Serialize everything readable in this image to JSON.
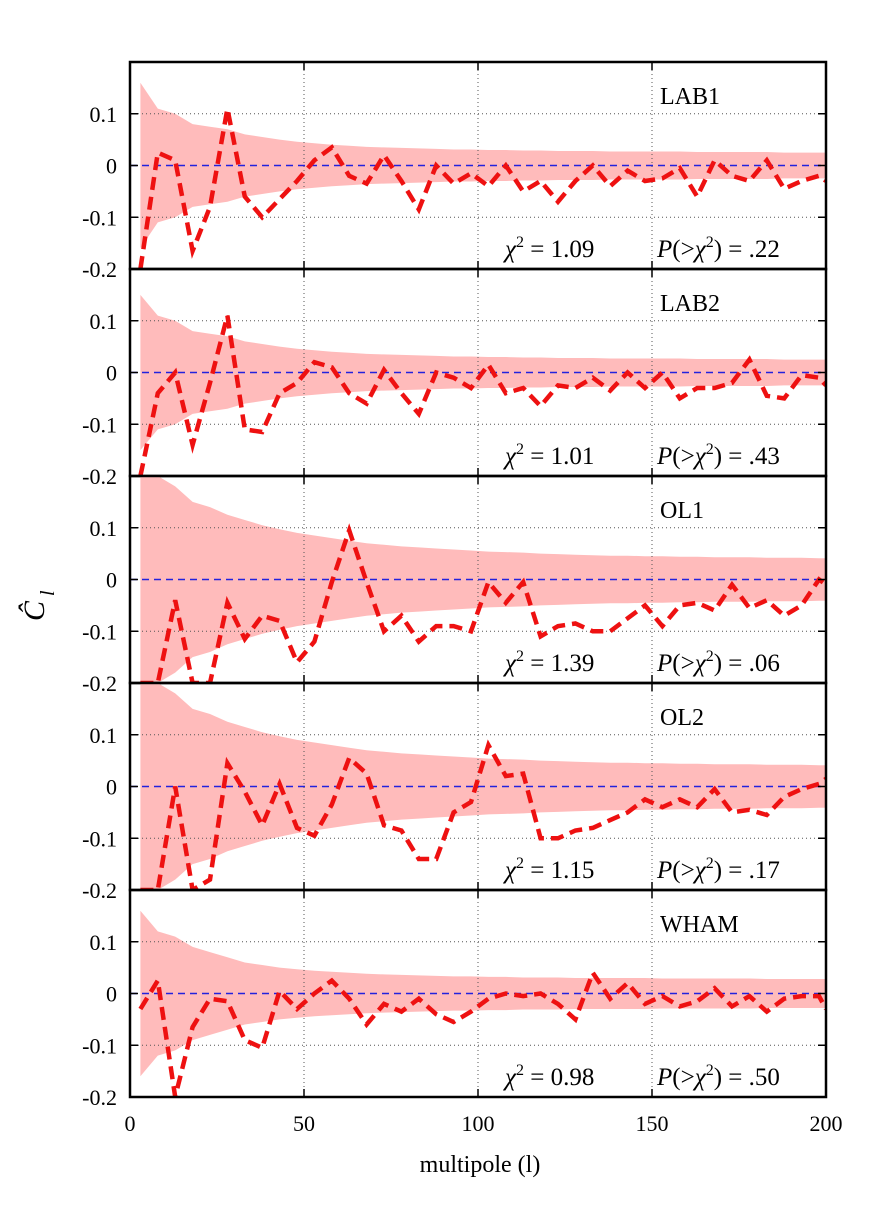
{
  "chart_data": {
    "type": "line",
    "xlabel": "multipole (l)",
    "ylabel": "Ĉ",
    "ylabel_sub": "l",
    "xlim": [
      0,
      200
    ],
    "ylim": [
      -0.2,
      0.2
    ],
    "xticks": [
      0,
      50,
      100,
      150,
      200
    ],
    "xtick_labels": [
      "0",
      "50",
      "100",
      "150",
      "200"
    ],
    "yticks": [
      -0.2,
      -0.1,
      0,
      0.1
    ],
    "ytick_labels": [
      "-0.2",
      "-0.1",
      "0",
      "0.1"
    ],
    "grid": true,
    "colors": {
      "line": "#ee1111",
      "band": "#ffbbbb",
      "zero": "#2222dd"
    },
    "x": [
      3,
      8,
      13,
      18,
      23,
      28,
      33,
      38,
      43,
      48,
      53,
      58,
      63,
      68,
      73,
      78,
      83,
      88,
      93,
      98,
      103,
      108,
      113,
      118,
      123,
      128,
      133,
      138,
      143,
      148,
      153,
      158,
      163,
      168,
      173,
      178,
      183,
      188,
      193,
      198,
      200
    ],
    "panels": [
      {
        "label": "LAB1",
        "chi2": "χ² = 1.09",
        "pval": "P(>χ²) = .22",
        "chi2_text": "1.09",
        "pval_text": ".22",
        "band": [
          0.16,
          0.11,
          0.1,
          0.08,
          0.075,
          0.07,
          0.06,
          0.055,
          0.05,
          0.046,
          0.043,
          0.04,
          0.038,
          0.036,
          0.035,
          0.034,
          0.033,
          0.032,
          0.031,
          0.031,
          0.03,
          0.03,
          0.029,
          0.029,
          0.028,
          0.028,
          0.028,
          0.027,
          0.027,
          0.027,
          0.027,
          0.027,
          0.026,
          0.026,
          0.026,
          0.026,
          0.026,
          0.025,
          0.025,
          0.025,
          0.025
        ],
        "values": [
          -0.2,
          0.025,
          0.01,
          -0.165,
          -0.08,
          0.11,
          -0.06,
          -0.1,
          -0.065,
          -0.03,
          0.01,
          0.035,
          -0.02,
          -0.035,
          0.02,
          -0.03,
          -0.085,
          0.0,
          -0.035,
          -0.015,
          -0.04,
          0.0,
          -0.05,
          -0.03,
          -0.07,
          -0.03,
          0.0,
          -0.04,
          -0.01,
          -0.03,
          -0.025,
          -0.005,
          -0.06,
          0.01,
          -0.02,
          -0.03,
          0.01,
          -0.045,
          -0.03,
          -0.02,
          -0.03
        ]
      },
      {
        "label": "LAB2",
        "chi2": "χ² = 1.01",
        "pval": "P(>χ²) = .43",
        "chi2_text": "1.01",
        "pval_text": ".43",
        "band": [
          0.15,
          0.11,
          0.1,
          0.08,
          0.075,
          0.07,
          0.06,
          0.055,
          0.05,
          0.046,
          0.043,
          0.04,
          0.038,
          0.036,
          0.035,
          0.034,
          0.033,
          0.032,
          0.031,
          0.031,
          0.03,
          0.03,
          0.029,
          0.029,
          0.028,
          0.028,
          0.028,
          0.027,
          0.027,
          0.027,
          0.027,
          0.027,
          0.026,
          0.026,
          0.026,
          0.026,
          0.026,
          0.025,
          0.025,
          0.025,
          0.025
        ],
        "values": [
          -0.2,
          -0.04,
          0.0,
          -0.14,
          -0.02,
          0.11,
          -0.11,
          -0.115,
          -0.04,
          -0.02,
          0.02,
          0.01,
          -0.04,
          -0.06,
          0.005,
          -0.04,
          -0.08,
          0.0,
          -0.01,
          -0.03,
          0.015,
          -0.04,
          -0.03,
          -0.065,
          -0.025,
          -0.03,
          -0.01,
          -0.035,
          0.0,
          -0.03,
          0.0,
          -0.05,
          -0.03,
          -0.03,
          -0.02,
          0.025,
          -0.045,
          -0.05,
          -0.005,
          -0.01,
          -0.025
        ]
      },
      {
        "label": "OL1",
        "chi2": "χ² = 1.39",
        "pval": "P(>χ²) = .06",
        "chi2_text": "1.39",
        "pval_text": ".06",
        "band": [
          0.22,
          0.2,
          0.18,
          0.15,
          0.14,
          0.125,
          0.115,
          0.105,
          0.097,
          0.09,
          0.085,
          0.08,
          0.075,
          0.07,
          0.067,
          0.064,
          0.062,
          0.06,
          0.058,
          0.056,
          0.054,
          0.053,
          0.052,
          0.05,
          0.049,
          0.048,
          0.047,
          0.046,
          0.046,
          0.045,
          0.045,
          0.044,
          0.044,
          0.043,
          0.043,
          0.043,
          0.042,
          0.042,
          0.042,
          0.041,
          0.041
        ],
        "values": [
          -0.2,
          -0.2,
          -0.04,
          -0.2,
          -0.2,
          -0.045,
          -0.115,
          -0.07,
          -0.08,
          -0.16,
          -0.12,
          -0.005,
          0.095,
          -0.005,
          -0.1,
          -0.07,
          -0.12,
          -0.09,
          -0.09,
          -0.1,
          -0.005,
          -0.045,
          -0.005,
          -0.11,
          -0.09,
          -0.085,
          -0.1,
          -0.1,
          -0.075,
          -0.05,
          -0.09,
          -0.05,
          -0.045,
          -0.06,
          -0.01,
          -0.055,
          -0.04,
          -0.07,
          -0.05,
          0.0,
          -0.01
        ]
      },
      {
        "label": "OL2",
        "chi2": "χ² = 1.15",
        "pval": "P(>χ²) = .17",
        "chi2_text": "1.15",
        "pval_text": ".17",
        "band": [
          0.22,
          0.2,
          0.18,
          0.15,
          0.14,
          0.125,
          0.115,
          0.105,
          0.097,
          0.09,
          0.085,
          0.08,
          0.075,
          0.07,
          0.067,
          0.064,
          0.062,
          0.06,
          0.058,
          0.056,
          0.054,
          0.053,
          0.052,
          0.05,
          0.049,
          0.048,
          0.047,
          0.046,
          0.046,
          0.045,
          0.045,
          0.044,
          0.044,
          0.043,
          0.043,
          0.043,
          0.042,
          0.042,
          0.042,
          0.041,
          0.041
        ],
        "values": [
          -0.2,
          -0.2,
          0.0,
          -0.2,
          -0.18,
          0.045,
          -0.01,
          -0.075,
          0.005,
          -0.08,
          -0.095,
          -0.035,
          0.055,
          0.025,
          -0.075,
          -0.085,
          -0.14,
          -0.14,
          -0.05,
          -0.03,
          0.08,
          0.02,
          0.025,
          -0.1,
          -0.1,
          -0.085,
          -0.08,
          -0.065,
          -0.05,
          -0.025,
          -0.04,
          -0.025,
          -0.04,
          -0.005,
          -0.05,
          -0.045,
          -0.055,
          -0.02,
          -0.005,
          0.005,
          0.015
        ]
      },
      {
        "label": "WHAM",
        "chi2": "χ² = 0.98",
        "pval": "P(>χ²) = .50",
        "chi2_text": "0.98",
        "pval_text": ".50",
        "band": [
          0.16,
          0.12,
          0.11,
          0.09,
          0.08,
          0.07,
          0.06,
          0.055,
          0.05,
          0.047,
          0.044,
          0.042,
          0.04,
          0.038,
          0.037,
          0.036,
          0.035,
          0.034,
          0.033,
          0.033,
          0.032,
          0.032,
          0.031,
          0.031,
          0.031,
          0.03,
          0.03,
          0.03,
          0.03,
          0.03,
          0.029,
          0.029,
          0.029,
          0.029,
          0.029,
          0.029,
          0.028,
          0.028,
          0.028,
          0.028,
          0.028
        ],
        "values": [
          -0.03,
          0.025,
          -0.2,
          -0.065,
          -0.01,
          -0.015,
          -0.09,
          -0.105,
          0.005,
          -0.03,
          0.0,
          0.025,
          -0.01,
          -0.06,
          -0.02,
          -0.035,
          -0.01,
          -0.04,
          -0.055,
          -0.035,
          -0.01,
          0.0,
          -0.005,
          0.0,
          -0.02,
          -0.05,
          0.04,
          -0.01,
          0.02,
          -0.02,
          -0.005,
          -0.025,
          -0.015,
          0.01,
          -0.025,
          -0.005,
          -0.035,
          -0.01,
          -0.005,
          -0.005,
          -0.03
        ]
      }
    ]
  }
}
